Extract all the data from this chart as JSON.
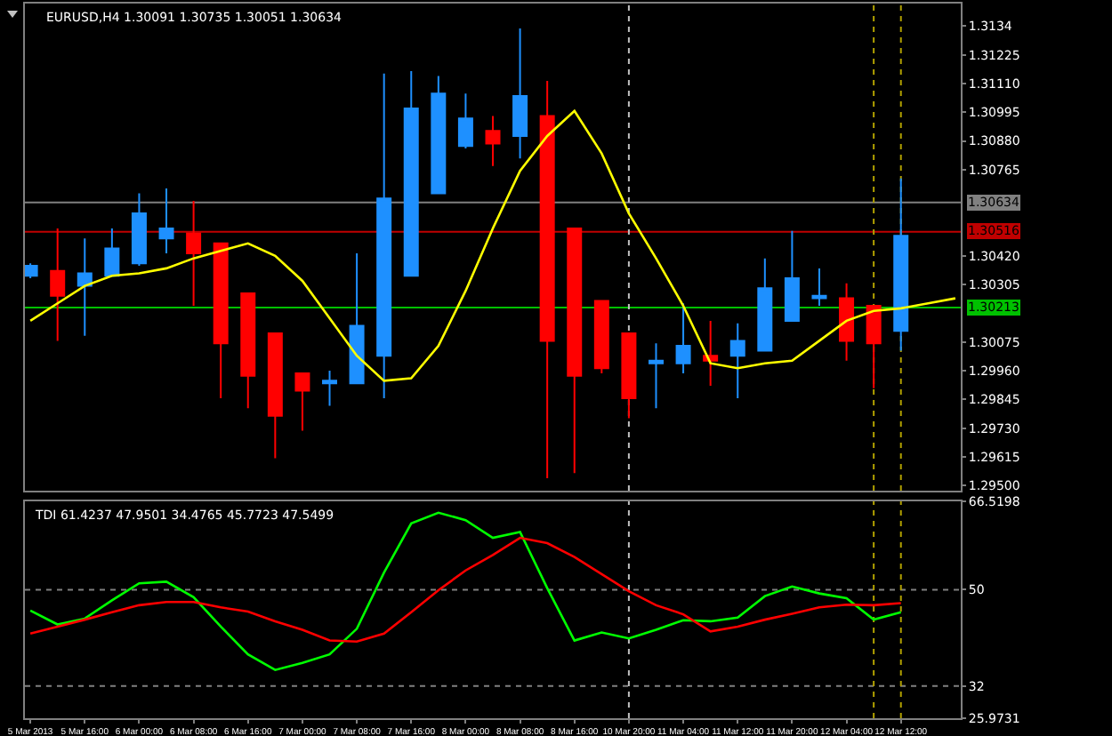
{
  "chart_data": [
    {
      "type": "candlestick",
      "title": "EURUSD,H4 1.30091 1.30735 1.30051 1.30634",
      "categories": [
        "5 Mar 2013",
        null,
        "5 Mar 16:00",
        null,
        "6 Mar 00:00",
        null,
        "6 Mar 08:00",
        null,
        "6 Mar 16:00",
        null,
        "7 Mar 00:00",
        null,
        "7 Mar 08:00",
        null,
        "7 Mar 16:00",
        null,
        "8 Mar 00:00",
        null,
        "8 Mar 08:00",
        null,
        "8 Mar 16:00",
        null,
        "10 Mar 20:00",
        null,
        "11 Mar 04:00",
        null,
        "11 Mar 12:00",
        null,
        "11 Mar 20:00",
        null,
        "12 Mar 04:00",
        null,
        "12 Mar 12:00",
        null,
        null
      ],
      "ohlc": [
        [
          1.3034,
          1.3039,
          1.3033,
          1.3038
        ],
        [
          1.3036,
          1.3053,
          1.3008,
          1.3026
        ],
        [
          1.303,
          1.3049,
          1.301,
          1.3035
        ],
        [
          1.3034,
          1.3053,
          1.3034,
          1.3045
        ],
        [
          1.3039,
          1.3067,
          1.3038,
          1.3059
        ],
        [
          1.3049,
          1.3069,
          1.3043,
          1.3053
        ],
        [
          1.3051,
          1.3064,
          1.3022,
          1.3043
        ],
        [
          1.3047,
          1.3047,
          1.2985,
          1.3007
        ],
        [
          1.3027,
          1.3027,
          1.2981,
          1.2994
        ],
        [
          1.3011,
          1.3011,
          1.2961,
          1.2978
        ],
        [
          1.2995,
          1.2995,
          1.2972,
          1.2988
        ],
        [
          1.2991,
          1.2996,
          1.2982,
          1.2992
        ],
        [
          1.2991,
          1.3043,
          1.2991,
          1.3014
        ],
        [
          1.3002,
          1.3115,
          1.2985,
          1.3065
        ],
        [
          1.3034,
          1.3116,
          1.3034,
          1.3101
        ],
        [
          1.3067,
          1.3114,
          1.3067,
          1.3107
        ],
        [
          1.3086,
          1.3107,
          1.3085,
          1.3097
        ],
        [
          1.3092,
          1.3098,
          1.3078,
          1.3087
        ],
        [
          1.309,
          1.3133,
          1.3081,
          1.3106
        ],
        [
          1.3098,
          1.3112,
          1.2953,
          1.3008
        ],
        [
          1.3053,
          1.3053,
          1.2955,
          1.2994
        ],
        [
          1.3024,
          1.3024,
          1.2995,
          1.2997
        ],
        [
          1.3011,
          1.3011,
          1.2977,
          1.2985
        ],
        [
          1.2999,
          1.3007,
          1.2981,
          1.3
        ],
        [
          1.2999,
          1.3023,
          1.2995,
          1.3006
        ],
        [
          1.3002,
          1.3016,
          1.299,
          1.3
        ],
        [
          1.3002,
          1.3015,
          1.2985,
          1.3008
        ],
        [
          1.3004,
          1.3041,
          1.3004,
          1.3029
        ],
        [
          1.3016,
          1.3052,
          1.3016,
          1.3033
        ],
        [
          1.3025,
          1.3037,
          1.3022,
          1.3026
        ],
        [
          1.3025,
          1.3031,
          1.3,
          1.3008
        ],
        [
          1.3022,
          1.3022,
          1.2989,
          1.3007
        ],
        [
          1.3012,
          1.3073,
          1.3004,
          1.305
        ],
        null,
        null
      ],
      "colors": [
        "#1e90ff",
        "#ff0000",
        "#1e90ff",
        "#1e90ff",
        "#1e90ff",
        "#1e90ff",
        "#ff0000",
        "#ff0000",
        "#ff0000",
        "#ff0000",
        "#ff0000",
        "#1e90ff",
        "#1e90ff",
        "#1e90ff",
        "#1e90ff",
        "#1e90ff",
        "#1e90ff",
        "#ff0000",
        "#1e90ff",
        "#ff0000",
        "#ff0000",
        "#ff0000",
        "#ff0000",
        "#1e90ff",
        "#1e90ff",
        "#ff0000",
        "#1e90ff",
        "#1e90ff",
        "#1e90ff",
        "#1e90ff",
        "#ff0000",
        "#ff0000",
        "#1e90ff",
        null,
        null
      ],
      "series": [
        {
          "type": "line",
          "color": "#ffff00",
          "values": [
            1.3016,
            1.3023,
            1.303,
            1.3034,
            1.3035,
            1.3037,
            1.3041,
            1.3044,
            1.3047,
            1.3042,
            1.3032,
            1.3017,
            1.3002,
            1.2992,
            1.2993,
            1.3006,
            1.3028,
            1.3053,
            1.3076,
            1.309,
            1.31,
            1.3083,
            1.3059,
            1.3041,
            1.3022,
            1.2999,
            1.2997,
            1.2999,
            1.3,
            1.3008,
            1.3016,
            1.302,
            1.3021,
            1.3023,
            1.3025
          ]
        }
      ],
      "ylim": [
        1.2948,
        1.3143
      ],
      "yticks": [
        1.3134,
        {
          "value": 1.31225,
          "label": "1.31225"
        },
        {
          "value": 1.3111,
          "label": "1.31110"
        },
        {
          "value": 1.30995,
          "label": "1.30995"
        },
        {
          "value": 1.3088,
          "label": "1.30880"
        },
        {
          "value": 1.30765,
          "label": "1.30765"
        },
        {
          "value": 1.3042,
          "label": "1.30420"
        },
        {
          "value": 1.30305,
          "label": "1.30305"
        },
        {
          "value": 1.30075,
          "label": "1.30075"
        },
        {
          "value": 1.2996,
          "label": "1.29960"
        },
        {
          "value": 1.29845,
          "label": "1.29845"
        },
        {
          "value": 1.2973,
          "label": "1.29730"
        },
        {
          "value": 1.29615,
          "label": "1.29615"
        },
        {
          "value": 1.295,
          "label": "1.29500"
        }
      ],
      "tick_labels": "y",
      "ref_lines": [
        {
          "axis": "y",
          "value": 1.30634,
          "label": "1.30634",
          "color": "#808080"
        },
        {
          "axis": "y",
          "value": 1.30516,
          "label": "1.30516",
          "color": "#c00000"
        },
        {
          "axis": "y",
          "value": 1.30213,
          "label": "1.30213",
          "color": "#00c000"
        },
        {
          "axis": "x",
          "value": "10 Mar 20:00",
          "color": "#c0c0c0",
          "line_style": "dotted"
        },
        {
          "axis": "x",
          "value": "12 Mar 12:00",
          "color": "#b0a000",
          "line_style": "dotted"
        }
      ]
    },
    {
      "type": "line",
      "title": "TDI 61.4237 47.9501 34.4765 45.7723 47.5499",
      "categories": [
        "5 Mar 2013",
        null,
        "5 Mar 16:00",
        null,
        "6 Mar 00:00",
        null,
        "6 Mar 08:00",
        null,
        "6 Mar 16:00",
        null,
        "7 Mar 00:00",
        null,
        "7 Mar 08:00",
        null,
        "7 Mar 16:00",
        null,
        "8 Mar 00:00",
        null,
        "8 Mar 08:00",
        null,
        "8 Mar 16:00",
        null,
        "10 Mar 20:00",
        null,
        "11 Mar 04:00",
        null,
        "11 Mar 12:00",
        null,
        "11 Mar 20:00",
        null,
        "12 Mar 04:00",
        null,
        "12 Mar 12:00",
        null,
        null
      ],
      "series": [
        {
          "color": "#00ff00",
          "values": [
            46.1,
            43.5,
            44.6,
            48.0,
            51.2,
            51.5,
            48.6,
            43.1,
            37.9,
            35.0,
            36.3,
            37.9,
            42.7,
            53.2,
            62.4,
            64.4,
            63.0,
            59.7,
            60.8,
            50.3,
            40.5,
            42.0,
            40.9,
            42.5,
            44.3,
            44.1,
            44.8,
            48.8,
            50.6,
            49.3,
            48.4,
            44.4,
            45.8,
            null,
            null
          ]
        },
        {
          "color": "#ff0000",
          "values": [
            41.8,
            43.1,
            44.4,
            45.8,
            47.1,
            47.7,
            47.7,
            46.7,
            45.9,
            44.1,
            42.5,
            40.5,
            40.3,
            41.8,
            45.8,
            49.9,
            53.6,
            56.5,
            59.7,
            58.7,
            56.1,
            52.9,
            49.7,
            47.1,
            45.4,
            42.2,
            43.1,
            44.4,
            45.5,
            46.7,
            47.2,
            47.1,
            47.5,
            null,
            null
          ]
        }
      ],
      "ylim": [
        25.9731,
        66.5198
      ],
      "yticks": [
        66.5198,
        50,
        32,
        25.9731
      ],
      "ref_lines": [
        {
          "axis": "y",
          "value": 50,
          "color": "#808080",
          "line_style": "dotted"
        },
        {
          "axis": "y",
          "value": 32,
          "color": "#808080",
          "line_style": "dotted"
        },
        {
          "axis": "x",
          "value": "10 Mar 20:00",
          "color": "#c0c0c0",
          "line_style": "dotted"
        },
        {
          "axis": "x",
          "value": "12 Mar 12:00",
          "color": "#b0a000",
          "line_style": "dotted"
        }
      ]
    }
  ]
}
